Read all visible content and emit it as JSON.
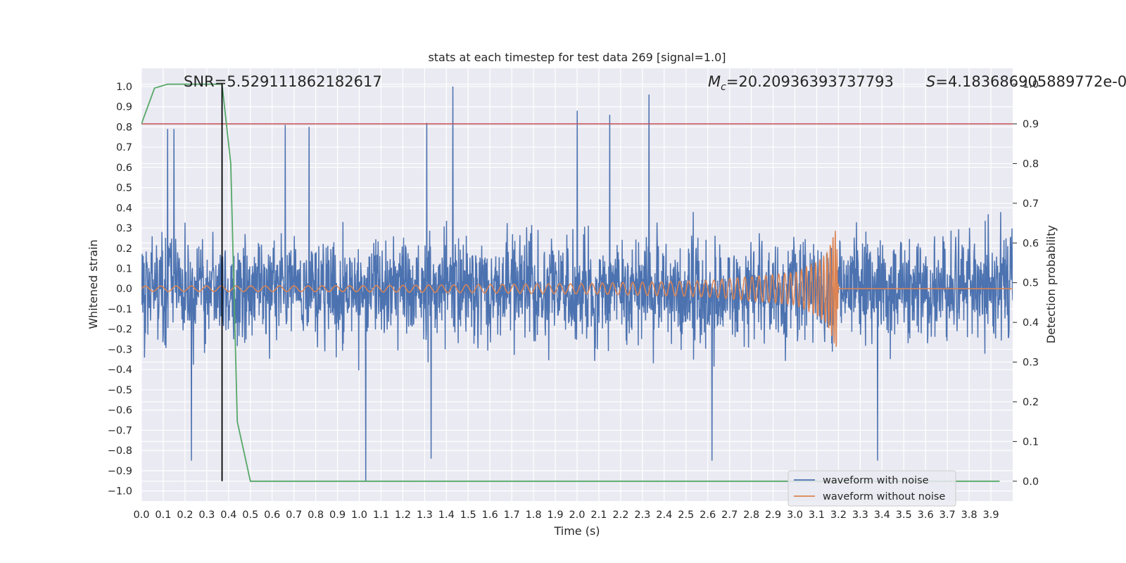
{
  "chart_data": {
    "type": "line",
    "title": "stats at each timestep for test data 269 [signal=1.0]",
    "xlabel": "Time (s)",
    "ylabel": "Whitened strain",
    "y2label": "Detection probability",
    "xlim": [
      0.0,
      4.0
    ],
    "ylim": [
      -1.05,
      1.09
    ],
    "y2lim": [
      -0.05,
      1.04
    ],
    "grid": true,
    "legend_position": "lower-right",
    "x_ticks": [
      "0.0",
      "0.1",
      "0.2",
      "0.3",
      "0.4",
      "0.5",
      "0.6",
      "0.7",
      "0.8",
      "0.9",
      "1.0",
      "1.1",
      "1.2",
      "1.3",
      "1.4",
      "1.5",
      "1.6",
      "1.7",
      "1.8",
      "1.9",
      "2.0",
      "2.1",
      "2.2",
      "2.3",
      "2.4",
      "2.5",
      "2.6",
      "2.7",
      "2.8",
      "2.9",
      "3.0",
      "3.1",
      "3.2",
      "3.3",
      "3.4",
      "3.5",
      "3.6",
      "3.7",
      "3.8",
      "3.9"
    ],
    "y_ticks": [
      "1.0",
      "0.9",
      "0.8",
      "0.7",
      "0.6",
      "0.5",
      "0.4",
      "0.3",
      "0.2",
      "0.1",
      "0.0",
      "−0.1",
      "−0.2",
      "−0.3",
      "−0.4",
      "−0.5",
      "−0.6",
      "−0.7",
      "−0.8",
      "−0.9",
      "−1.0"
    ],
    "y2_ticks": [
      "1.0",
      "0.9",
      "0.8",
      "0.7",
      "0.6",
      "0.5",
      "0.4",
      "0.3",
      "0.2",
      "0.1",
      "0.0"
    ],
    "annotations": {
      "snr": "SNR=5.529111862182617",
      "mc_symbol": "M",
      "mc_sub": "c",
      "mc_value": "=20.20936393737793",
      "s_symbol": "S",
      "s_value": "=4.183686905889772e-0"
    },
    "series": [
      {
        "name": "waveform with noise",
        "axis": "left",
        "color": "#4c72b0",
        "description_type": "noise",
        "amplitude_range": [
          -1.0,
          1.0
        ],
        "notable_peaks": [
          [
            0.12,
            0.79
          ],
          [
            0.15,
            0.79
          ],
          [
            0.66,
            0.81
          ],
          [
            0.77,
            0.8
          ],
          [
            1.31,
            0.82
          ],
          [
            1.43,
            1.0
          ],
          [
            2.0,
            0.88
          ],
          [
            2.15,
            0.86
          ],
          [
            2.33,
            0.96
          ],
          [
            1.03,
            -0.95
          ],
          [
            0.23,
            -0.85
          ],
          [
            1.33,
            -0.84
          ],
          [
            2.62,
            -0.85
          ],
          [
            3.38,
            -0.85
          ]
        ]
      },
      {
        "name": "waveform without noise",
        "axis": "left",
        "color": "#dd8452",
        "description_type": "chirp",
        "merger_time": 3.2,
        "peak_amplitude": 0.3,
        "envelope": [
          [
            0.0,
            0.013
          ],
          [
            1.0,
            0.015
          ],
          [
            2.0,
            0.025
          ],
          [
            2.6,
            0.04
          ],
          [
            3.0,
            0.08
          ],
          [
            3.1,
            0.13
          ],
          [
            3.15,
            0.18
          ],
          [
            3.19,
            0.3
          ],
          [
            3.2,
            0.0
          ],
          [
            4.0,
            0.0
          ]
        ]
      },
      {
        "name": "",
        "axis": "right",
        "color": "#55a868",
        "x": [
          0.0,
          0.06,
          0.12,
          0.37,
          0.41,
          0.44,
          0.5,
          3.94
        ],
        "values": [
          0.9,
          0.99,
          1.0,
          1.0,
          0.8,
          0.15,
          0.0,
          0.0
        ]
      },
      {
        "name": "",
        "axis": "right",
        "color": "#c44e52",
        "type": "hline",
        "values": [
          0.9
        ]
      },
      {
        "name": "",
        "axis": "right",
        "color": "#000000",
        "type": "vline",
        "x": [
          0.37
        ],
        "y_range": [
          0.0,
          1.0
        ]
      }
    ]
  }
}
